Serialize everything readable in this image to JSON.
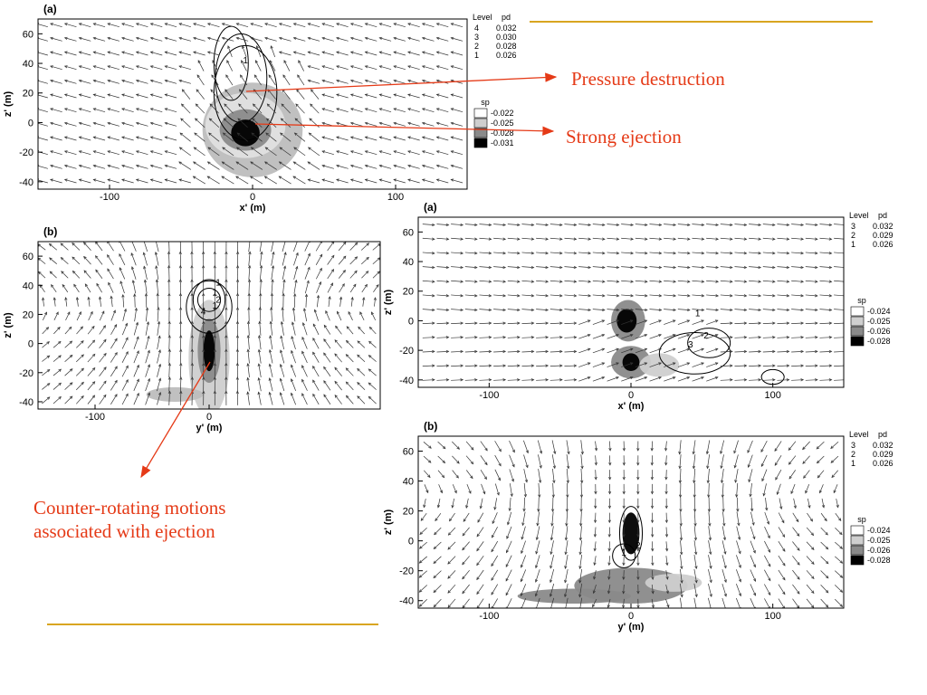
{
  "colors": {
    "annotation": "#e53a17",
    "rule": "#d9a520",
    "axis": "#000000",
    "vector": "#333333"
  },
  "annotations": {
    "pressure_destruction": "Pressure destruction",
    "strong_ejection": "Strong ejection",
    "counter_rotating": [
      "Counter-rotating motions",
      "associated with ejection"
    ]
  },
  "chart_data": [
    {
      "id": "left-a",
      "type": "contour",
      "panel_label": "(a)",
      "xlabel": "x' (m)",
      "ylabel": "z' (m)",
      "xlim": [
        -150,
        150
      ],
      "ylim": [
        -45,
        70
      ],
      "xticks": [
        -100,
        0,
        100
      ],
      "yticks": [
        -40,
        -20,
        0,
        20,
        40,
        60
      ],
      "legend_pd": {
        "header": [
          "Level",
          "pd"
        ],
        "rows": [
          [
            "4",
            "0.032"
          ],
          [
            "3",
            "0.030"
          ],
          [
            "2",
            "0.028"
          ],
          [
            "1",
            "0.026"
          ]
        ]
      },
      "legend_sp": {
        "header": "sp",
        "levels": [
          "-0.022",
          "-0.025",
          "-0.028",
          "-0.031"
        ]
      },
      "contour_labels": [
        "1"
      ]
    },
    {
      "id": "left-b",
      "type": "contour",
      "panel_label": "(b)",
      "xlabel": "y' (m)",
      "ylabel": "z' (m)",
      "xlim": [
        -150,
        150
      ],
      "ylim": [
        -45,
        70
      ],
      "xticks": [
        -100,
        0
      ],
      "yticks": [
        -40,
        -20,
        0,
        20,
        40,
        60
      ],
      "contour_labels": [
        "1",
        "1",
        "1",
        "2",
        "4"
      ]
    },
    {
      "id": "right-a",
      "type": "contour",
      "panel_label": "(a)",
      "xlabel": "x' (m)",
      "ylabel": "z' (m)",
      "xlim": [
        -150,
        150
      ],
      "ylim": [
        -45,
        70
      ],
      "xticks": [
        -100,
        0,
        100
      ],
      "yticks": [
        -40,
        -20,
        0,
        20,
        40,
        60
      ],
      "legend_pd": {
        "header": [
          "Level",
          "pd"
        ],
        "rows": [
          [
            "3",
            "0.032"
          ],
          [
            "2",
            "0.029"
          ],
          [
            "1",
            "0.026"
          ]
        ]
      },
      "legend_sp": {
        "header": "sp",
        "levels": [
          "-0.024",
          "-0.025",
          "-0.026",
          "-0.028"
        ]
      },
      "contour_labels": [
        "1",
        "2",
        "3"
      ]
    },
    {
      "id": "right-b",
      "type": "contour",
      "panel_label": "(b)",
      "xlabel": "y' (m)",
      "ylabel": "z' (m)",
      "xlim": [
        -150,
        150
      ],
      "ylim": [
        -45,
        70
      ],
      "xticks": [
        -100,
        0,
        100
      ],
      "yticks": [
        -40,
        -20,
        0,
        20,
        40,
        60
      ],
      "legend_pd": {
        "header": [
          "Level",
          "pd"
        ],
        "rows": [
          [
            "3",
            "0.032"
          ],
          [
            "2",
            "0.029"
          ],
          [
            "1",
            "0.026"
          ]
        ]
      },
      "legend_sp": {
        "header": "sp",
        "levels": [
          "-0.024",
          "-0.025",
          "-0.026",
          "-0.028"
        ]
      },
      "contour_labels": [
        "1",
        "2"
      ]
    }
  ]
}
